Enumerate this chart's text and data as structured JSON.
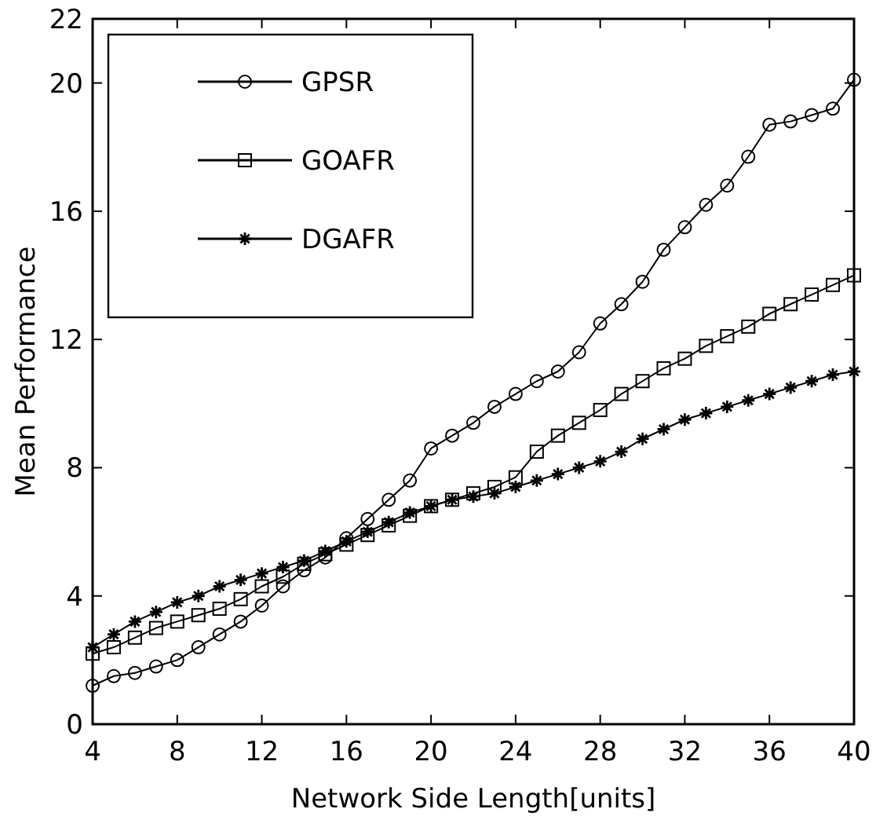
{
  "chart_data": {
    "type": "line",
    "xlabel": "Network Side Length[units]",
    "ylabel": "Mean Performance",
    "x": [
      4,
      5,
      6,
      7,
      8,
      9,
      10,
      11,
      12,
      13,
      14,
      15,
      16,
      17,
      18,
      19,
      20,
      21,
      22,
      23,
      24,
      25,
      26,
      27,
      28,
      29,
      30,
      31,
      32,
      33,
      34,
      35,
      36,
      37,
      38,
      39,
      40
    ],
    "series": [
      {
        "name": "GPSR",
        "color": "#000000",
        "marker": "circle",
        "values": [
          1.2,
          1.5,
          1.6,
          1.8,
          2.0,
          2.4,
          2.8,
          3.2,
          3.7,
          4.3,
          4.8,
          5.2,
          5.8,
          6.4,
          7.0,
          7.6,
          8.6,
          9.0,
          9.4,
          9.9,
          10.3,
          10.7,
          11.0,
          11.6,
          12.5,
          13.1,
          13.8,
          14.8,
          15.5,
          16.2,
          16.8,
          17.7,
          18.7,
          18.8,
          19.0,
          19.2,
          20.1
        ]
      },
      {
        "name": "GOAFR",
        "color": "#000000",
        "marker": "square",
        "values": [
          2.2,
          2.4,
          2.7,
          3.0,
          3.2,
          3.4,
          3.6,
          3.9,
          4.3,
          4.6,
          5.0,
          5.3,
          5.6,
          5.9,
          6.2,
          6.5,
          6.8,
          7.0,
          7.2,
          7.4,
          7.7,
          8.5,
          9.0,
          9.4,
          9.8,
          10.3,
          10.7,
          11.1,
          11.4,
          11.8,
          12.1,
          12.4,
          12.8,
          13.1,
          13.4,
          13.7,
          14.0
        ]
      },
      {
        "name": "DGAFR",
        "color": "#000000",
        "marker": "cross",
        "values": [
          2.4,
          2.8,
          3.2,
          3.5,
          3.8,
          4.0,
          4.3,
          4.5,
          4.7,
          4.9,
          5.1,
          5.4,
          5.7,
          6.0,
          6.3,
          6.6,
          6.8,
          7.0,
          7.1,
          7.2,
          7.4,
          7.6,
          7.8,
          8.0,
          8.2,
          8.5,
          8.9,
          9.2,
          9.5,
          9.7,
          9.9,
          10.1,
          10.3,
          10.5,
          10.7,
          10.9,
          11.0
        ]
      }
    ],
    "xlim": [
      4,
      40
    ],
    "xticks": [
      4,
      8,
      12,
      16,
      20,
      24,
      28,
      32,
      36,
      40
    ],
    "ylim": [
      0,
      22
    ],
    "yticks": [
      0,
      4,
      8,
      12,
      16,
      20,
      22
    ],
    "grid": false,
    "legend": "top left",
    "line_style": "solid"
  }
}
